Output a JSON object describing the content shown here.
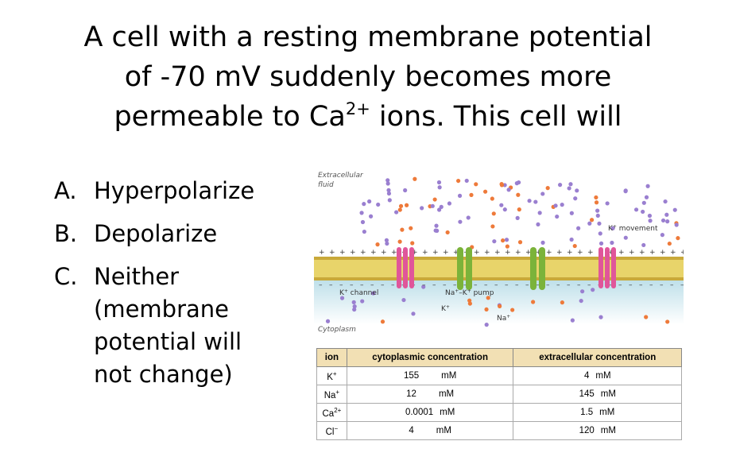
{
  "title": {
    "line_1": "A cell with a resting membrane potential",
    "line_2": "of -70 mV suddenly becomes more",
    "line_3_before": "permeable to Ca",
    "line_3_sup": "2+",
    "line_3_after": " ions. This cell will"
  },
  "options": [
    {
      "letter": "A.",
      "lines": [
        "Hyperpolarize"
      ]
    },
    {
      "letter": "B.",
      "lines": [
        "Depolarize"
      ]
    },
    {
      "letter": "C.",
      "lines": [
        "Neither",
        "(membrane",
        "potential will",
        "not change)"
      ]
    }
  ],
  "figure": {
    "extracellular": [
      "Extracellular",
      "fluid"
    ],
    "k_movement": {
      "base": "K",
      "sup": "+",
      "rest": " movement"
    },
    "k_channel": {
      "base": "K",
      "sup": "+",
      "rest": " channel"
    },
    "pump": {
      "base_1": "Na",
      "sup_1": "+",
      "mid": "–K",
      "sup_2": "+",
      "rest": " pump"
    },
    "k_ion": {
      "base": "K",
      "sup": "+"
    },
    "na_ion": {
      "base": "Na",
      "sup": "+"
    },
    "cytoplasm": "Cytoplasm"
  },
  "table": {
    "header": [
      "ion",
      "cytoplasmic concentration",
      "extracellular concentration"
    ],
    "rows": [
      {
        "ion": "K",
        "sup": "+",
        "cyto": 155,
        "cyto_unit": "mM",
        "extra": 4,
        "extra_unit": "mM"
      },
      {
        "ion": "Na",
        "sup": "+",
        "cyto": 12,
        "cyto_unit": "mM",
        "extra": 145,
        "extra_unit": "mM"
      },
      {
        "ion": "Ca",
        "sup": "2+",
        "cyto": 0.0001,
        "cyto_unit": "mM",
        "extra": 1.5,
        "extra_unit": "mM"
      },
      {
        "ion": "Cl",
        "sup": "−",
        "cyto": 4,
        "cyto_unit": "mM",
        "extra": 120,
        "extra_unit": "mM"
      }
    ]
  }
}
